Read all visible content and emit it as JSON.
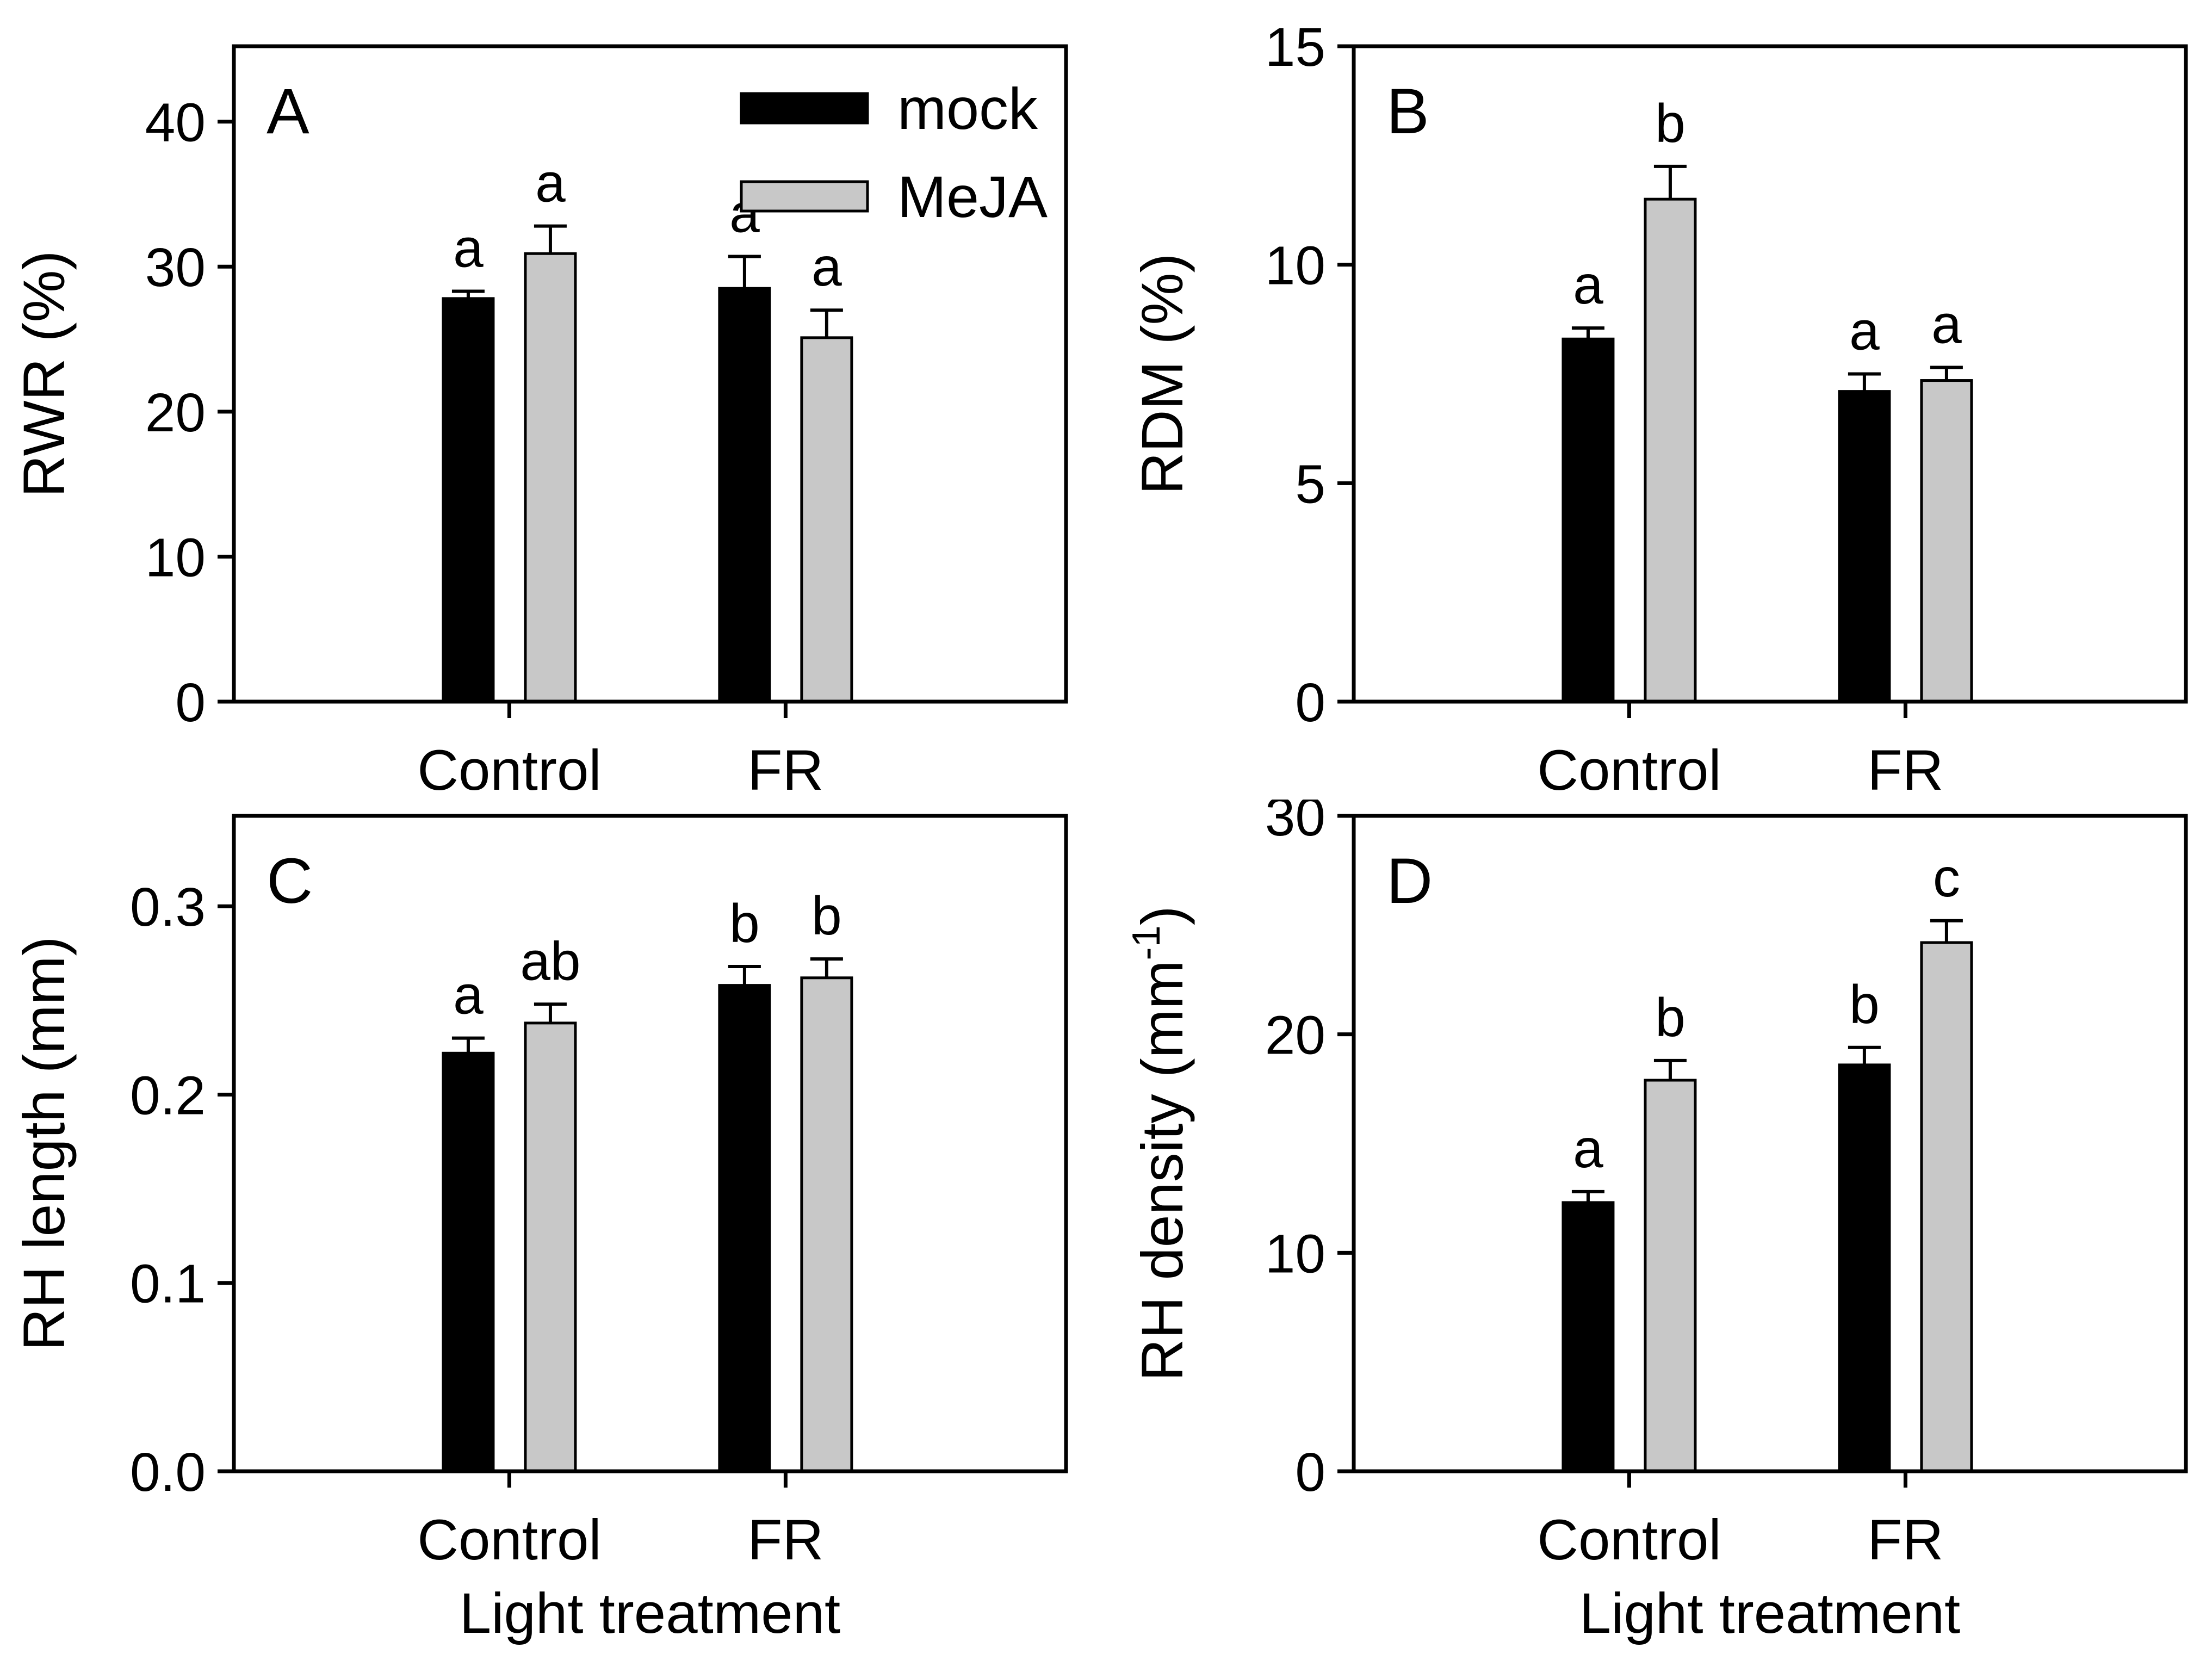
{
  "figure": {
    "background": "#ffffff",
    "bar_colors": {
      "mock": "#000000",
      "MeJA": "#c8c8c8"
    },
    "x_axis_label": "Light treatment",
    "legend": {
      "position": "top-right-panel-A",
      "items": [
        {
          "label": "mock",
          "color": "#000000"
        },
        {
          "label": "MeJA",
          "color": "#c8c8c8"
        }
      ]
    }
  },
  "chart_data": [
    {
      "type": "bar",
      "panel_label": "A",
      "ylabel": "RWR (%)",
      "xlabel": "",
      "categories": [
        "Control",
        "FR"
      ],
      "ylim": [
        0,
        45.2
      ],
      "ytick_values": [
        0,
        10,
        20,
        30,
        40
      ],
      "ytick_labels": [
        "0",
        "10",
        "20",
        "30",
        "40"
      ],
      "grid": false,
      "legend": true,
      "series": [
        {
          "name": "mock",
          "color": "#000000",
          "values": [
            27.8,
            28.5
          ],
          "errors": [
            0.5,
            2.2
          ],
          "sig_letters": [
            "a",
            "a"
          ]
        },
        {
          "name": "MeJA",
          "color": "#c8c8c8",
          "values": [
            30.9,
            25.1
          ],
          "errors": [
            1.9,
            1.9
          ],
          "sig_letters": [
            "a",
            "a"
          ]
        }
      ]
    },
    {
      "type": "bar",
      "panel_label": "B",
      "ylabel": "RDM (%)",
      "xlabel": "",
      "categories": [
        "Control",
        "FR"
      ],
      "ylim": [
        0,
        15
      ],
      "ytick_values": [
        0,
        5,
        10,
        15
      ],
      "ytick_labels": [
        "0",
        "5",
        "10",
        "15"
      ],
      "grid": false,
      "legend": false,
      "series": [
        {
          "name": "mock",
          "color": "#000000",
          "values": [
            8.3,
            7.1
          ],
          "errors": [
            0.25,
            0.4
          ],
          "sig_letters": [
            "a",
            "a"
          ]
        },
        {
          "name": "MeJA",
          "color": "#c8c8c8",
          "values": [
            11.5,
            7.35
          ],
          "errors": [
            0.75,
            0.3
          ],
          "sig_letters": [
            "b",
            "a"
          ]
        }
      ]
    },
    {
      "type": "bar",
      "panel_label": "C",
      "ylabel": "RH length (mm)",
      "xlabel": "Light treatment",
      "categories": [
        "Control",
        "FR"
      ],
      "ylim": [
        0,
        0.348
      ],
      "ytick_values": [
        0,
        0.1,
        0.2,
        0.3
      ],
      "ytick_labels": [
        "0.0",
        "0.1",
        "0.2",
        "0.3"
      ],
      "grid": false,
      "legend": false,
      "series": [
        {
          "name": "mock",
          "color": "#000000",
          "values": [
            0.222,
            0.258
          ],
          "errors": [
            0.008,
            0.01
          ],
          "sig_letters": [
            "a",
            "b"
          ]
        },
        {
          "name": "MeJA",
          "color": "#c8c8c8",
          "values": [
            0.238,
            0.262
          ],
          "errors": [
            0.01,
            0.01
          ],
          "sig_letters": [
            "ab",
            "b"
          ]
        }
      ]
    },
    {
      "type": "bar",
      "panel_label": "D",
      "ylabel": "RH density (mm⁻¹)",
      "xlabel": "Light treatment",
      "categories": [
        "Control",
        "FR"
      ],
      "ylim": [
        0,
        30
      ],
      "ytick_values": [
        0,
        10,
        20,
        30
      ],
      "ytick_labels": [
        "0",
        "10",
        "20",
        "30"
      ],
      "grid": false,
      "legend": false,
      "series": [
        {
          "name": "mock",
          "color": "#000000",
          "values": [
            12.3,
            18.6
          ],
          "errors": [
            0.5,
            0.8
          ],
          "sig_letters": [
            "a",
            "b"
          ]
        },
        {
          "name": "MeJA",
          "color": "#c8c8c8",
          "values": [
            17.9,
            24.2
          ],
          "errors": [
            0.9,
            1.0
          ],
          "sig_letters": [
            "b",
            "c"
          ]
        }
      ]
    }
  ]
}
